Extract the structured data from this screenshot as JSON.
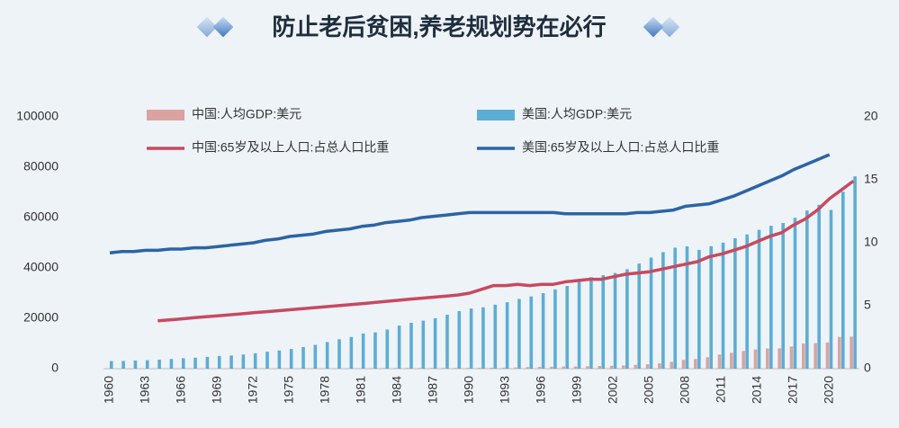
{
  "chart_data": {
    "type": "bar_line",
    "title": "防止老后贫困,养老规划势在必行",
    "categories": [
      "1960",
      null,
      null,
      "1963",
      null,
      null,
      "1966",
      null,
      null,
      "1969",
      null,
      null,
      "1972",
      null,
      null,
      "1975",
      null,
      null,
      "1978",
      null,
      null,
      "1981",
      null,
      null,
      "1984",
      null,
      null,
      "1987",
      null,
      null,
      "1990",
      null,
      null,
      "1993",
      null,
      null,
      "1996",
      null,
      null,
      "1999",
      null,
      null,
      "2002",
      null,
      null,
      "2005",
      null,
      null,
      "2008",
      null,
      null,
      "2011",
      null,
      null,
      "2014",
      null,
      null,
      "2017",
      null,
      null,
      "2020",
      null,
      null
    ],
    "series": [
      {
        "name": "中国:人均GDP:美元",
        "kind": "bar",
        "color": "#dba3a0",
        "values": [
          90,
          76,
          70,
          74,
          85,
          98,
          104,
          97,
          91,
          100,
          113,
          119,
          132,
          157,
          160,
          178,
          165,
          185,
          156,
          183,
          195,
          197,
          203,
          225,
          251,
          294,
          282,
          252,
          283,
          310,
          318,
          333,
          366,
          377,
          473,
          610,
          709,
          782,
          829,
          873,
          959,
          1053,
          1149,
          1289,
          1509,
          1753,
          2099,
          2694,
          3468,
          3832,
          4550,
          5614,
          6301,
          7020,
          7636,
          8016,
          8094,
          8817,
          9977,
          10144,
          10409,
          12618,
          12720
        ]
      },
      {
        "name": "美国:人均GDP:美元",
        "kind": "bar",
        "color": "#5aaed6",
        "values": [
          3007,
          3067,
          3244,
          3375,
          3574,
          3828,
          4146,
          4336,
          4696,
          5032,
          5234,
          5609,
          6094,
          6726,
          7226,
          7801,
          8592,
          9453,
          10565,
          11674,
          12575,
          13976,
          14434,
          15544,
          17121,
          18237,
          19071,
          20039,
          21417,
          22857,
          23889,
          24342,
          25419,
          26387,
          27695,
          28691,
          29968,
          31459,
          32854,
          34515,
          36330,
          37134,
          37998,
          39490,
          41725,
          44123,
          46302,
          48050,
          48570,
          47195,
          48651,
          50066,
          51784,
          53291,
          55124,
          56763,
          57867,
          59915,
          62805,
          65095,
          63028,
          70249,
          76399
        ]
      },
      {
        "name": "中国:65岁及以上人口:占总人口比重",
        "kind": "line",
        "axis": "y2",
        "color": "#c74a5e",
        "values": [
          null,
          null,
          null,
          null,
          3.8,
          3.88,
          3.96,
          4.04,
          4.12,
          4.2,
          4.28,
          4.36,
          4.44,
          4.52,
          4.6,
          4.68,
          4.76,
          4.84,
          4.92,
          5.0,
          5.08,
          5.16,
          5.25,
          5.34,
          5.43,
          5.52,
          5.6,
          5.68,
          5.76,
          5.85,
          6.0,
          6.3,
          6.6,
          6.6,
          6.7,
          6.6,
          6.7,
          6.7,
          6.9,
          7.0,
          7.1,
          7.1,
          7.3,
          7.5,
          7.6,
          7.7,
          7.9,
          8.1,
          8.3,
          8.5,
          8.9,
          9.1,
          9.4,
          9.7,
          10.1,
          10.5,
          10.8,
          11.4,
          11.9,
          12.6,
          13.5,
          14.2,
          14.9
        ]
      },
      {
        "name": "美国:65岁及以上人口:占总人口比重",
        "kind": "line",
        "axis": "y2",
        "color": "#2c64a4",
        "values": [
          9.2,
          9.3,
          9.3,
          9.4,
          9.4,
          9.5,
          9.5,
          9.6,
          9.6,
          9.7,
          9.8,
          9.9,
          10.0,
          10.2,
          10.3,
          10.5,
          10.6,
          10.7,
          10.9,
          11.0,
          11.1,
          11.3,
          11.4,
          11.6,
          11.7,
          11.8,
          12.0,
          12.1,
          12.2,
          12.3,
          12.4,
          12.4,
          12.4,
          12.4,
          12.4,
          12.4,
          12.4,
          12.4,
          12.3,
          12.3,
          12.3,
          12.3,
          12.3,
          12.3,
          12.4,
          12.4,
          12.5,
          12.6,
          12.9,
          13.0,
          13.1,
          13.4,
          13.7,
          14.1,
          14.5,
          14.9,
          15.3,
          15.8,
          16.2,
          16.6,
          17.0,
          null,
          null
        ]
      }
    ],
    "ylim": [
      0,
      100000
    ],
    "yticks": [
      0,
      20000,
      40000,
      60000,
      80000,
      100000
    ],
    "y2lim": [
      0,
      20
    ],
    "y2ticks": [
      0,
      5,
      10,
      15,
      20
    ],
    "grid": false,
    "legend": "top"
  }
}
